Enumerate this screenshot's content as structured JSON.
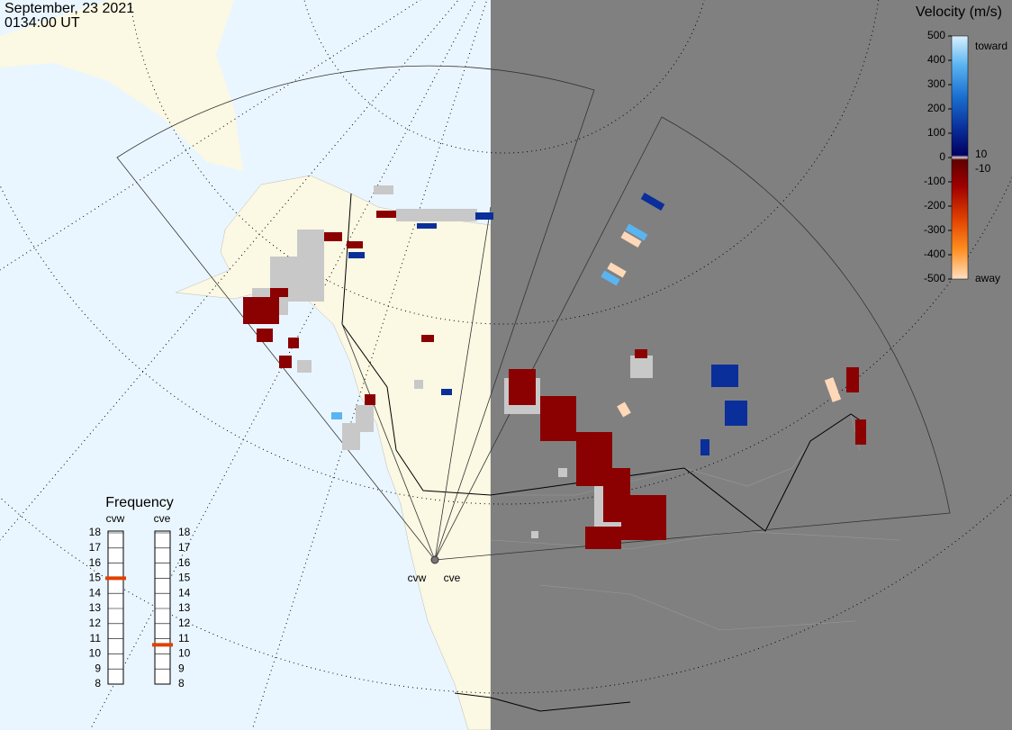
{
  "header": {
    "date": "September, 23 2021",
    "time": "0134:00 UT"
  },
  "colorbar": {
    "title": "Velocity (m/s)",
    "left_ticks": [
      500,
      400,
      300,
      200,
      100,
      0,
      -100,
      -200,
      -300,
      -400,
      -500
    ],
    "right_ticks": [
      10,
      -10
    ],
    "toward": "toward",
    "away": "away"
  },
  "frequency": {
    "title": "Frequency",
    "ticks": [
      18,
      17,
      16,
      15,
      14,
      13,
      12,
      11,
      10,
      9,
      8
    ],
    "radars": [
      {
        "name": "cvw",
        "value": 15
      },
      {
        "name": "cve",
        "value": 10.6
      }
    ]
  },
  "stations": [
    "cvw",
    "cve"
  ]
}
